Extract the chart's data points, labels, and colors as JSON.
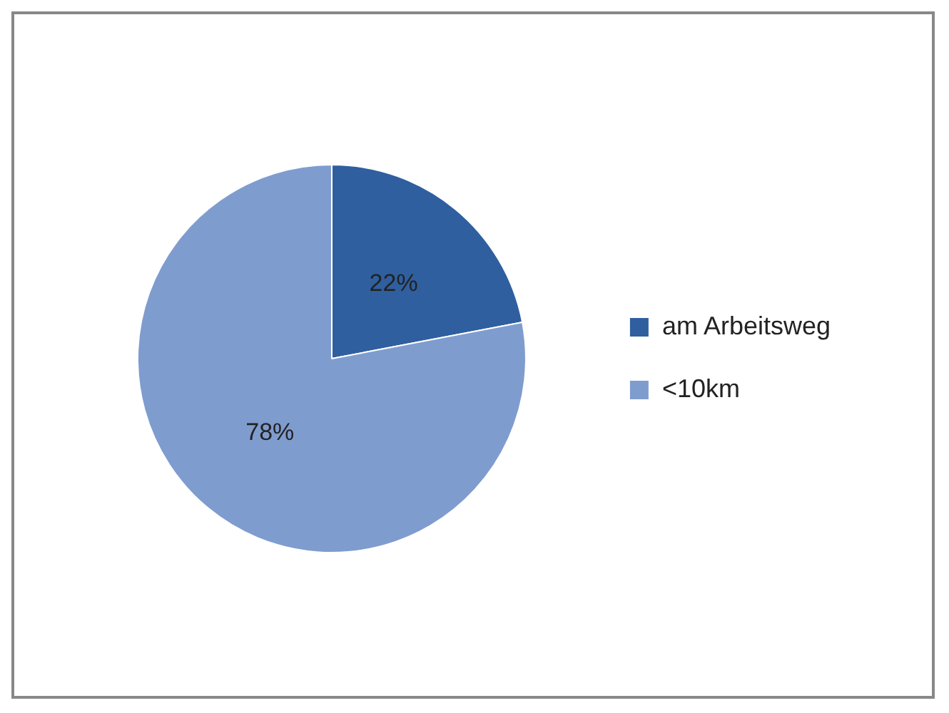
{
  "chart_data": {
    "type": "pie",
    "categories": [
      "am Arbeitsweg",
      "<10km"
    ],
    "values": [
      22,
      78
    ],
    "colors": [
      "#2f5f9f",
      "#7f9ccf"
    ],
    "value_labels": [
      "22%",
      "78%"
    ],
    "legend": "right"
  }
}
